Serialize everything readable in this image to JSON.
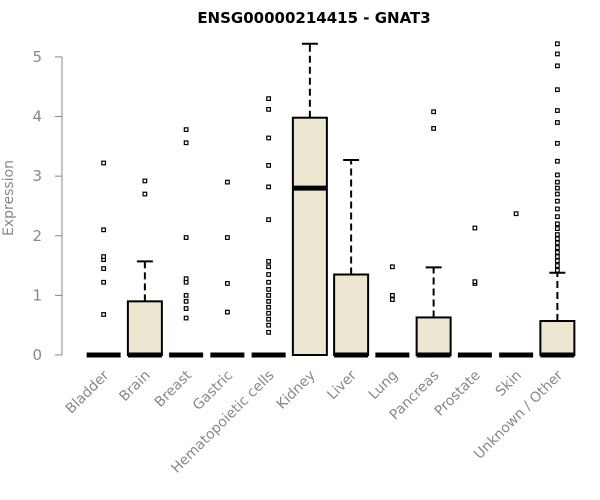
{
  "chart_data": {
    "type": "box",
    "title": "ENSG00000214415 - GNAT3",
    "xlabel": "",
    "ylabel": "Expression",
    "ylim": [
      0,
      5.25
    ],
    "yticks": [
      0,
      1,
      2,
      3,
      4,
      5
    ],
    "ytick_labels": [
      "0",
      "1",
      "2",
      "3",
      "4",
      "5"
    ],
    "grid": false,
    "box_fill": "#ede7d1",
    "categories": [
      "Bladder",
      "Brain",
      "Breast",
      "Gastric",
      "Hematopoietic cells",
      "Kidney",
      "Liver",
      "Lung",
      "Pancreas",
      "Prostate",
      "Skin",
      "Unknown / Other"
    ],
    "boxes": [
      {
        "q1": 0,
        "median": 0,
        "q3": 0,
        "whisker_low": 0,
        "whisker_high": 0,
        "outliers": [
          0.68,
          1.22,
          1.45,
          1.6,
          1.65,
          2.1,
          3.22
        ]
      },
      {
        "q1": 0,
        "median": 0,
        "q3": 0.9,
        "whisker_low": 0,
        "whisker_high": 1.57,
        "outliers": [
          2.7,
          2.92
        ]
      },
      {
        "q1": 0,
        "median": 0,
        "q3": 0,
        "whisker_low": 0,
        "whisker_high": 0,
        "outliers": [
          0.62,
          0.78,
          0.9,
          1.0,
          1.22,
          1.28,
          1.97,
          3.56,
          3.78
        ]
      },
      {
        "q1": 0,
        "median": 0,
        "q3": 0,
        "whisker_low": 0,
        "whisker_high": 0,
        "outliers": [
          0.72,
          1.2,
          1.97,
          2.9
        ]
      },
      {
        "q1": 0,
        "median": 0,
        "q3": 0,
        "whisker_low": 0,
        "whisker_high": 0,
        "outliers": [
          0.38,
          0.5,
          0.6,
          0.7,
          0.8,
          0.9,
          1.0,
          1.1,
          1.22,
          1.35,
          1.48,
          1.57,
          2.27,
          2.82,
          3.18,
          3.64,
          4.12,
          4.3
        ]
      },
      {
        "q1": 0,
        "median": 2.8,
        "q3": 3.98,
        "whisker_low": 0,
        "whisker_high": 5.22,
        "outliers": []
      },
      {
        "q1": 0,
        "median": 0,
        "q3": 1.35,
        "whisker_low": 0,
        "whisker_high": 3.27,
        "outliers": []
      },
      {
        "q1": 0,
        "median": 0,
        "q3": 0,
        "whisker_low": 0,
        "whisker_high": 0,
        "outliers": [
          0.93,
          1.0,
          1.48
        ]
      },
      {
        "q1": 0,
        "median": 0,
        "q3": 0.63,
        "whisker_low": 0,
        "whisker_high": 1.47,
        "outliers": [
          3.8,
          4.08
        ]
      },
      {
        "q1": 0,
        "median": 0,
        "q3": 0,
        "whisker_low": 0,
        "whisker_high": 0,
        "outliers": [
          1.2,
          1.23,
          2.13
        ]
      },
      {
        "q1": 0,
        "median": 0,
        "q3": 0,
        "whisker_low": 0,
        "whisker_high": 0,
        "outliers": [
          2.37
        ]
      },
      {
        "q1": 0,
        "median": 0,
        "q3": 0.57,
        "whisker_low": 0,
        "whisker_high": 1.38,
        "outliers": [
          1.42,
          1.5,
          1.58,
          1.65,
          1.72,
          1.8,
          1.88,
          1.95,
          2.02,
          2.12,
          2.2,
          2.32,
          2.45,
          2.58,
          2.7,
          2.8,
          2.9,
          3.02,
          3.25,
          3.55,
          3.9,
          4.1,
          4.45,
          4.85,
          5.05,
          5.22
        ]
      }
    ]
  }
}
